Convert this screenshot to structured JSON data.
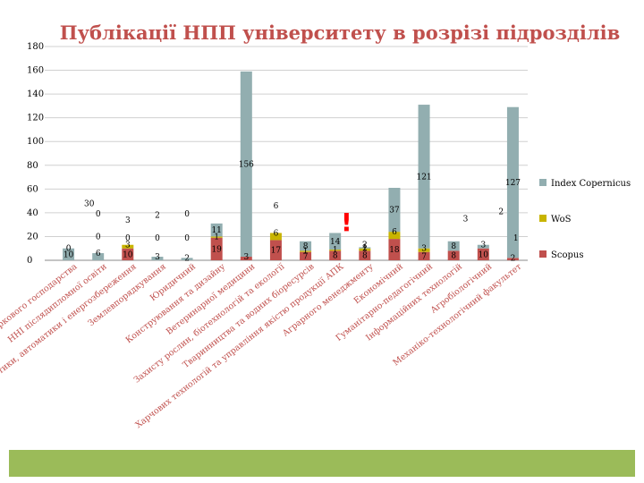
{
  "title": "Публікації НПП університету в розрізі підрозділів",
  "warning_mark": "!",
  "chart_data": {
    "type": "bar",
    "stacked": true,
    "title": "Публікації НПП університету в розрізі підрозділів",
    "ylim": [
      0,
      180
    ],
    "yticks": [
      "0",
      "20",
      "40",
      "60",
      "80",
      "100",
      "120",
      "140",
      "160",
      "180"
    ],
    "grid": true,
    "legend_position": "right",
    "colors": {
      "Scopus": "#c0504d",
      "WoS": "#c8b400",
      "Index Copernicus": "#92aeb0"
    },
    "categories": [
      "Навчально-науковий інститут лісового і садово-паркового господарства",
      "ННІ післядипломної освіти",
      "Енергетики, автоматики і енергозбереження",
      "Землевпорядкування",
      "Юридичний",
      "Конструювання та дизайну",
      "Ветеринарної медицини",
      "Захисту рослин, біотехнологій та екології",
      "Тваринництва та водних біоресурсів",
      "Харчових технологій та управління якістю продукції АПК",
      "Аграрного менеджменту",
      "Економічний",
      "Гуманітарно-педагогічний",
      "Інформаційних технологій",
      "Агробіологічний",
      "Механіко-технологічний факультет"
    ],
    "series": [
      {
        "name": "Scopus",
        "values": [
          0,
          0,
          10,
          0,
          0,
          19,
          3,
          17,
          7,
          8,
          8,
          18,
          7,
          8,
          10,
          2
        ]
      },
      {
        "name": "WoS",
        "values": [
          0,
          0,
          3,
          0,
          0,
          1,
          0,
          6,
          1,
          1,
          2,
          6,
          3,
          0,
          0,
          0
        ]
      },
      {
        "name": "Index Copernicus",
        "values": [
          10,
          6,
          0,
          3,
          2,
          11,
          156,
          0,
          8,
          14,
          1,
          37,
          121,
          8,
          3,
          127
        ]
      }
    ],
    "data_labels": [
      {
        "text": "30",
        "x_index": 0.7,
        "y": 48
      },
      {
        "text": "6",
        "x_index": 7,
        "y": 46
      },
      {
        "text": "2",
        "x_index": 14.6,
        "y": 41
      },
      {
        "text": "3",
        "x_index": 13.4,
        "y": 35
      },
      {
        "text": "1",
        "x_index": 15.1,
        "y": 19
      },
      {
        "text": "2",
        "x_index": 10,
        "y": 13
      },
      {
        "text": "0",
        "x_index": 3,
        "y": 19
      },
      {
        "text": "0",
        "x_index": 4,
        "y": 19
      },
      {
        "text": "0",
        "x_index": 2,
        "y": 19
      },
      {
        "text": "0",
        "x_index": 1,
        "y": 39
      },
      {
        "text": "2",
        "x_index": 3,
        "y": 38
      },
      {
        "text": "0",
        "x_index": 4,
        "y": 39
      },
      {
        "text": "3",
        "x_index": 2,
        "y": 34
      },
      {
        "text": "0",
        "x_index": 1,
        "y": 20
      },
      {
        "text": "0",
        "x_index": 0,
        "y": 10
      }
    ]
  }
}
